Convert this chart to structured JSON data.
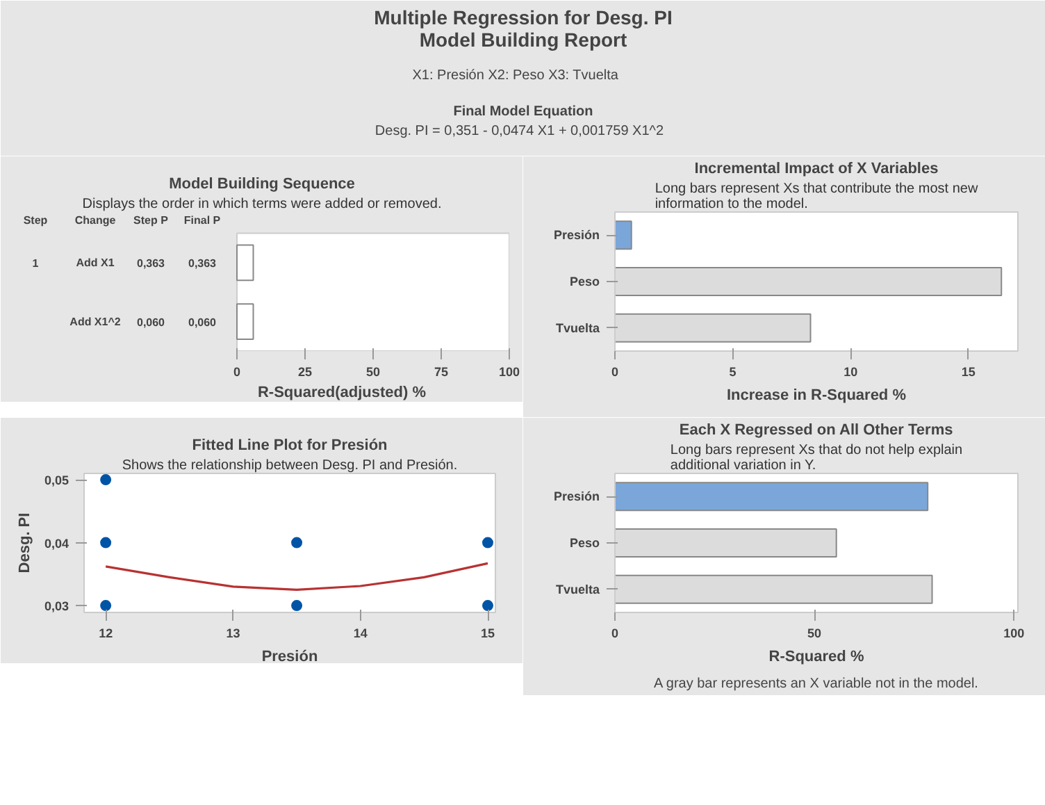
{
  "chart_data": [
    {
      "type": "other",
      "title": "Multiple Regression for Desg. PI",
      "subtitle": "Model Building Report",
      "annotations": [
        "X1: Presión   X2: Peso   X3: Tvuelta",
        "Final Model Equation",
        "Desg. PI  =  0,351 - 0,0474 X1 + 0,001759 X1^2"
      ]
    },
    {
      "type": "bar",
      "orientation": "horizontal",
      "title": "Model Building Sequence",
      "subtitle": "Displays the order in which terms were added or removed.",
      "xlabel": "R-Squared(adjusted) %",
      "categories": [
        "Add X1",
        "Add X1^2"
      ],
      "values": [
        6,
        6
      ],
      "colors": [
        "#ffffff",
        "#ffffff"
      ],
      "xlim": [
        0,
        100
      ],
      "xticks": [
        0,
        25,
        50,
        75,
        100
      ],
      "tick_labels": "x",
      "annotations": [
        "Step",
        "Change",
        "Step P",
        "Final P",
        "1",
        "0,363",
        "0,363",
        "0,060",
        "0,060"
      ]
    },
    {
      "type": "bar",
      "orientation": "horizontal",
      "title": "Incremental Impact of X Variables",
      "subtitle": "Long bars represent Xs that contribute the most new information to the model.",
      "xlabel": "Increase in R-Squared %",
      "categories": [
        "Presión",
        "Peso",
        "Tvuelta"
      ],
      "values": [
        0.7,
        16.4,
        8.3
      ],
      "colors": [
        "#7aa6da",
        "#dcdcdc",
        "#dcdcdc"
      ],
      "xlim": [
        0,
        17.1
      ],
      "xticks": [
        0,
        5,
        10,
        15
      ]
    },
    {
      "type": "scatter",
      "title": "Fitted Line Plot for Presión",
      "subtitle": "Shows the relationship between Desg. PI and Presión.",
      "xlabel": "Presión",
      "ylabel": "Desg. PI",
      "xlim": [
        11.83,
        15.06
      ],
      "ylim": [
        0.0289,
        0.051
      ],
      "xticks": [
        12,
        13,
        14,
        15
      ],
      "yticks": [
        {
          "value": 0.03,
          "label": "0,03"
        },
        {
          "value": 0.04,
          "label": "0,04"
        },
        {
          "value": 0.05,
          "label": "0,05"
        }
      ],
      "series": [
        {
          "type": "scatter",
          "marker": "circle",
          "color": "#0054a6",
          "x": [
            12,
            12,
            12,
            13.5,
            13.5,
            15,
            15
          ],
          "values": [
            0.05,
            0.04,
            0.03,
            0.04,
            0.03,
            0.04,
            0.03
          ]
        },
        {
          "type": "line",
          "marker": "none",
          "color": "#b83232",
          "x": [
            12,
            12.5,
            13,
            13.5,
            14,
            14.5,
            15
          ],
          "values": [
            0.0362,
            0.0345,
            0.033,
            0.0325,
            0.0331,
            0.0345,
            0.0367
          ]
        }
      ]
    },
    {
      "type": "bar",
      "orientation": "horizontal",
      "title": "Each X Regressed on All Other Terms",
      "subtitle": "Long bars represent Xs that do not help explain additional variation in Y.",
      "xlabel": "R-Squared %",
      "categories": [
        "Presión",
        "Peso",
        "Tvuelta"
      ],
      "values": [
        78.4,
        55.5,
        79.5
      ],
      "colors": [
        "#7aa6da",
        "#dcdcdc",
        "#dcdcdc"
      ],
      "xlim": [
        0,
        101
      ],
      "xticks": [
        0,
        50,
        100
      ],
      "annotations": [
        "A gray bar represents an X variable not in the model."
      ]
    }
  ]
}
